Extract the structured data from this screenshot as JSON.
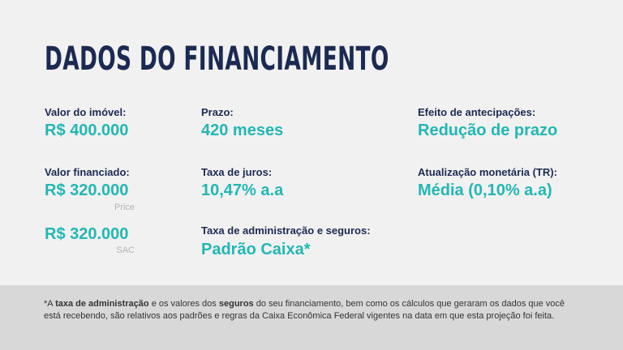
{
  "header": {
    "title": "DADOS DO FINANCIAMENTO"
  },
  "fields": [
    {
      "label": "Valor do imóvel:",
      "value": "R$ 400.000"
    },
    {
      "label": "Valor financiado:",
      "value": "R$ 320.000",
      "note": "Price"
    },
    {
      "value": "R$ 320.000",
      "note": "SAC"
    },
    {
      "label": "Prazo:",
      "value": "420 meses"
    },
    {
      "label": "Taxa de juros:",
      "value": "10,47% a.a"
    },
    {
      "label": "Taxa de administração e seguros:",
      "value": "Padrão Caixa*"
    },
    {
      "label": "Efeito de antecipações:",
      "value": "Redução de prazo"
    },
    {
      "label": "Atualização monetária (TR):",
      "value": "Média (0,10% a.a)"
    }
  ],
  "footnote": {
    "segments": [
      {
        "text": "*A ",
        "bold": false
      },
      {
        "text": "taxa de administração",
        "bold": true
      },
      {
        "text": " e os valores dos ",
        "bold": false
      },
      {
        "text": "seguros",
        "bold": true
      },
      {
        "text": " do seu financiamento, bem como os cálculos que geraram os dados que você está recebendo,  são relativos aos padrões e regras da Caixa Econômica Federal vigentes na data em que esta projeção foi feita.",
        "bold": false
      }
    ]
  }
}
